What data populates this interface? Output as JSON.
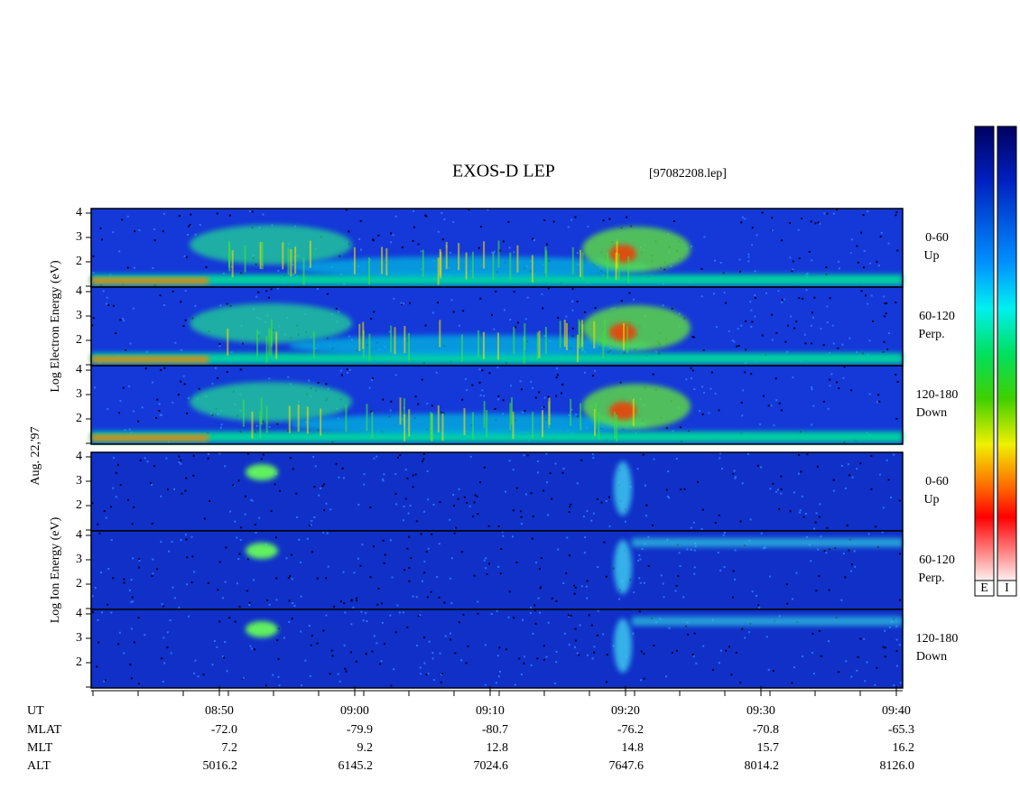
{
  "title": "EXOS-D LEP",
  "file": "[97082208.lep]",
  "date_label": "Aug. 22,'97",
  "groups": [
    {
      "axis_label": "Log Electron Energy (eV)",
      "panels": [
        {
          "angle": "0-60",
          "direction": "Up"
        },
        {
          "angle": "60-120",
          "direction": "Perp."
        },
        {
          "angle": "120-180",
          "direction": "Down"
        }
      ]
    },
    {
      "axis_label": "Log Ion Energy (eV)",
      "panels": [
        {
          "angle": "0-60",
          "direction": "Up"
        },
        {
          "angle": "60-120",
          "direction": "Perp."
        },
        {
          "angle": "120-180",
          "direction": "Down"
        }
      ]
    }
  ],
  "yticks": [
    2,
    3,
    4
  ],
  "colorbars": [
    "E",
    "I"
  ],
  "ephemeris": {
    "labels": [
      "UT",
      "MLAT",
      "MLT",
      "ALT"
    ],
    "columns": [
      [
        "08:50",
        "-72.0",
        "7.2",
        "5016.2"
      ],
      [
        "09:00",
        "-79.9",
        "9.2",
        "6145.2"
      ],
      [
        "09:10",
        "-80.7",
        "12.8",
        "7024.6"
      ],
      [
        "09:20",
        "-76.2",
        "14.8",
        "7647.6"
      ],
      [
        "09:30",
        "-70.8",
        "15.7",
        "8014.2"
      ],
      [
        "09:40",
        "-65.3",
        "16.2",
        "8126.0"
      ]
    ]
  }
}
